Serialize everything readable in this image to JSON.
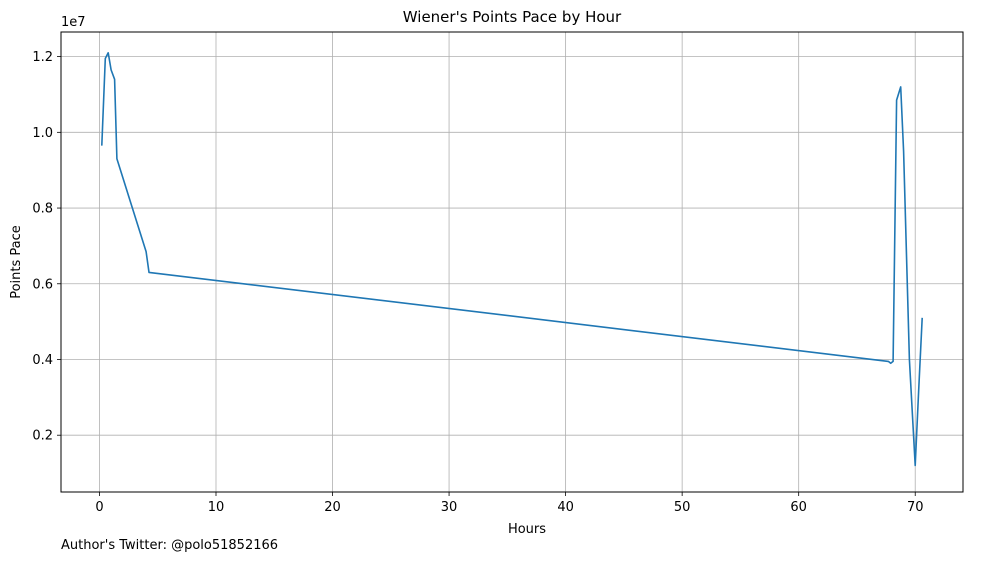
{
  "chart_data": {
    "type": "line",
    "title": "Wiener's Points Pace by Hour",
    "xlabel": "Hours",
    "ylabel": "Points Pace",
    "y_offset_label": "1e7",
    "xlim": [
      -3.3,
      74.1
    ],
    "ylim": [
      500000,
      12650000
    ],
    "x_ticks": [
      0,
      10,
      20,
      30,
      40,
      50,
      60,
      70
    ],
    "x_tick_labels": [
      "0",
      "10",
      "20",
      "30",
      "40",
      "50",
      "60",
      "70"
    ],
    "y_ticks": [
      2000000,
      4000000,
      6000000,
      8000000,
      10000000,
      12000000
    ],
    "y_tick_labels": [
      "0.2",
      "0.4",
      "0.6",
      "0.8",
      "1.0",
      "1.2"
    ],
    "grid": true,
    "line_color": "#1f77b4",
    "series": [
      {
        "x": [
          0.2,
          0.5,
          0.75,
          1.0,
          1.3,
          1.5,
          4.0,
          4.25,
          67.7,
          67.9,
          68.1,
          68.4,
          68.75,
          69.0,
          69.5,
          70.0,
          70.3,
          70.6
        ],
        "y": [
          9650000,
          11950000,
          12100000,
          11650000,
          11400000,
          9300000,
          6850000,
          6300000,
          3950000,
          3900000,
          3950000,
          10850000,
          11200000,
          9500000,
          4000000,
          1200000,
          3200000,
          5100000
        ]
      }
    ]
  },
  "footer": {
    "author_note": "Author's Twitter: @polo51852166"
  }
}
